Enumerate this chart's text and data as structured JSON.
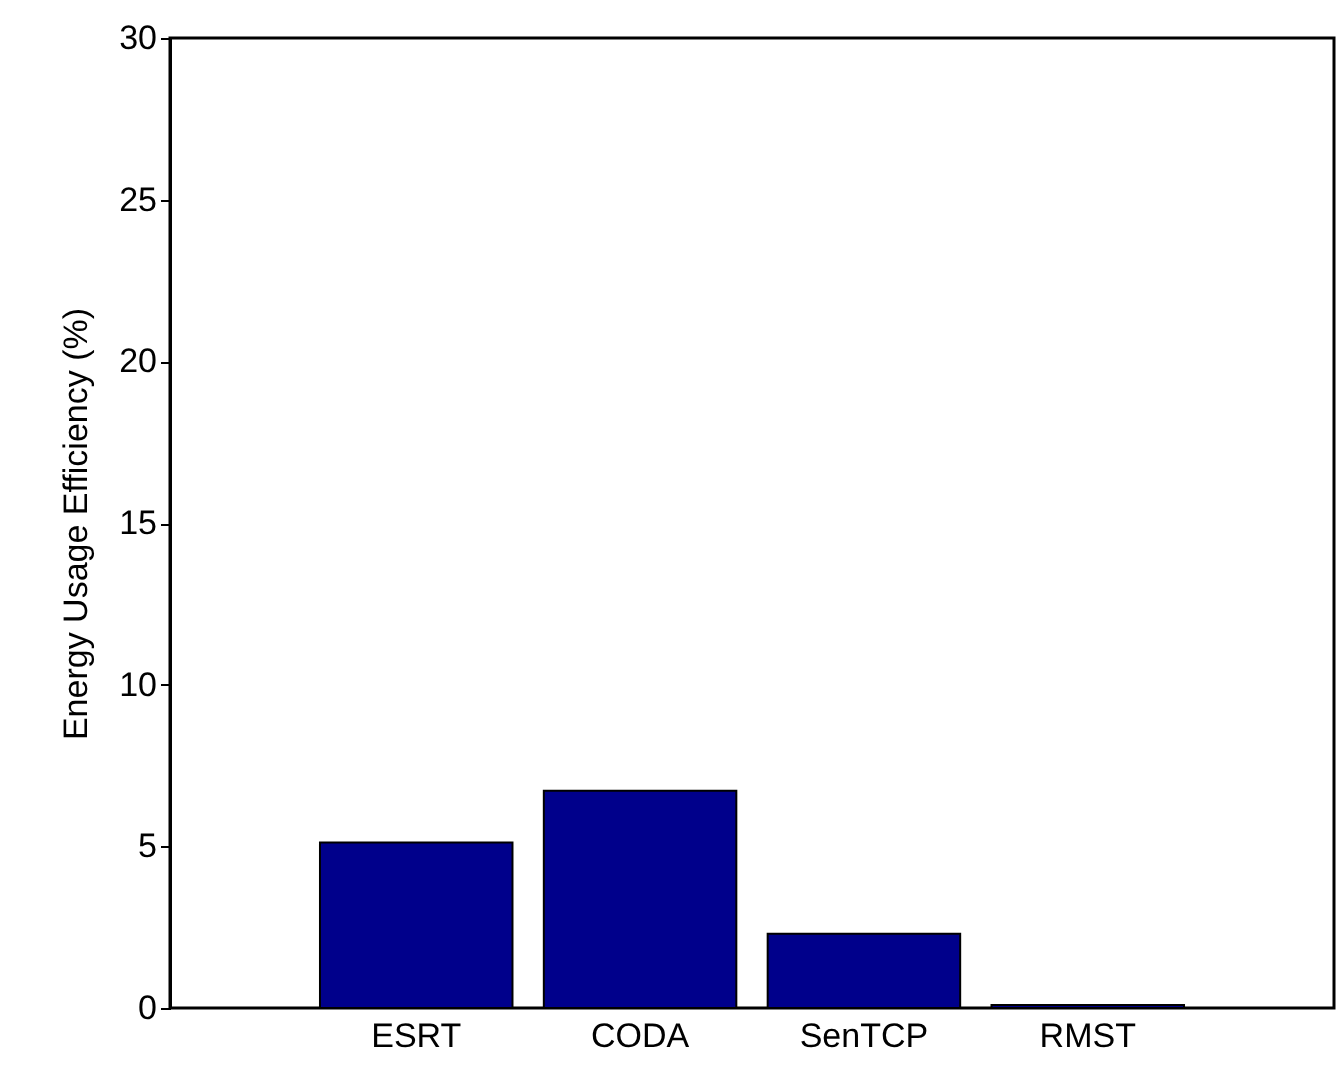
{
  "chart_data": {
    "type": "bar",
    "ylabel": "Energy Usage Efficiency (%)",
    "categories": [
      "ESRT",
      "CODA",
      "SenTCP",
      "RMST"
    ],
    "values": [
      5.12,
      6.72,
      2.3,
      0.09
    ],
    "color": "#00008b",
    "ylim": [
      0,
      30
    ],
    "yticks": [
      0,
      5,
      10,
      15,
      20,
      25,
      30
    ],
    "grid": false,
    "legend": false
  }
}
